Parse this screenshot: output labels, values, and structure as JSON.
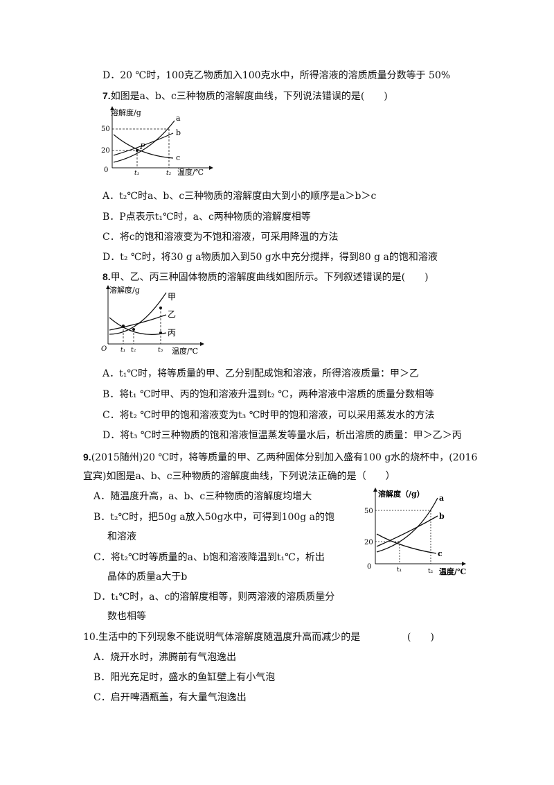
{
  "q6": {
    "optD": "D．20 ℃时，100克乙物质加入100克水中，所得溶液的溶质质量分数等于 50%"
  },
  "q7": {
    "num": "7.",
    "stem": "如图是a、b、c三种物质的溶解度曲线，下列说法错误的是(　　)",
    "graph": {
      "ylabel": "溶解度/g",
      "xlabel": "温度/℃",
      "y50": "50",
      "y20": "20",
      "origin": "0",
      "t1": "t₁",
      "t2": "t₂",
      "la": "a",
      "lb": "b",
      "lc": "c",
      "lp": "P"
    },
    "optA": "A．t₂℃时a、b、c三种物质的溶解度由大到小的顺序是a＞b＞c",
    "optB": "B．P点表示t₁℃时，a、c两种物质的溶解度相等",
    "optC": "C．将c的饱和溶液变为不饱和溶液，可采用降温的方法",
    "optD": "D．t₂ ℃时，将30 g a物质加入到50 g水中充分搅拌，得到80 g a的饱和溶液"
  },
  "q8": {
    "num": "8.",
    "stem": "甲、乙、丙三种固体物质的溶解度曲线如图所示。下列叙述错误的是(　　)",
    "graph": {
      "ylabel": "溶解度/g",
      "xlabel": "温度/℃",
      "origin": "O",
      "t1": "t₁",
      "t2": "t₂",
      "t3": "t₃",
      "l1": "甲",
      "l2": "乙",
      "l3": "丙"
    },
    "optA": "A．t₁℃时，将等质量的甲、乙分别配成饱和溶液，所得溶液质量：甲＞乙",
    "optB": "B．将t₁ ℃时甲、丙的饱和溶液升温到t₂ ℃，两种溶液中溶质的质量分数相等",
    "optC": "C．将t₂ ℃时甲的饱和溶液变为t₃ ℃时甲的饱和溶液，可以采用蒸发水的方法",
    "optD": "D．将t₃ ℃时三种物质的饱和溶液恒温蒸发等量水后，析出溶质的质量：甲＞乙＞丙"
  },
  "q9": {
    "num": "9.",
    "stem1": "(2015随州)20 ℃时，将等质量的甲、乙两种固体分别加入盛有100 g水的烧杯中，(2016",
    "stem2": "宜宾)如图是a、b、c三种物质的溶解度曲线，下列说法正确的是（　　）",
    "optA": "A．随温度升高，a、b、c三种物质的溶解度均增大",
    "optB1": "B．t₂℃时，把50g a放入50g水中，可得到100g a的饱",
    "optB2": "和溶液",
    "optC1": "C．将t₂℃时等质量的a、b饱和溶液降温到t₁℃，析出",
    "optC2": "晶体的质量a大于b",
    "optD1": "D．t₁℃时，a、c的溶解度相等，则两溶液的溶质质量分",
    "optD2": "数也相等",
    "graph": {
      "ylabel": "溶解度（/g）",
      "xlabel": "温度/℃",
      "y50": "50",
      "y20": "20",
      "origin": "0",
      "t1": "t₁",
      "t2": "t₂",
      "la": "a",
      "lb": "b",
      "lc": "c"
    }
  },
  "q10": {
    "stem": "10.生活中的下列现象不能说明气体溶解度随温度升高而减少的是",
    "paren": "(　　)",
    "optA": "A．烧开水时，沸腾前有气泡逸出",
    "optB": "B．阳光充足时，盛水的鱼缸壁上有小气泡",
    "optC": "C．启开啤酒瓶盖，有大量气泡逸出"
  }
}
